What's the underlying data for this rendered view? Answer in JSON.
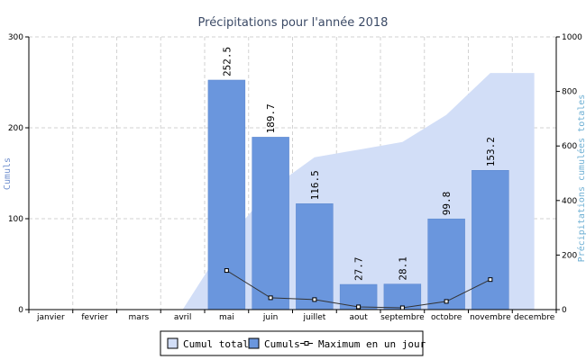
{
  "chart_data": {
    "type": "bar",
    "title": "Précipitations pour l'année 2018",
    "ylabel": "Cumuls",
    "y2label": "Précipitations cumulées totales",
    "categories": [
      "janvier",
      "fevrier",
      "mars",
      "avril",
      "mai",
      "juin",
      "juillet",
      "aout",
      "septembre",
      "octobre",
      "novembre",
      "decembre"
    ],
    "ylim": [
      0,
      300
    ],
    "y2lim": [
      0,
      1000
    ],
    "yticks": [
      "0",
      "100",
      "200",
      "300"
    ],
    "y2ticks": [
      "0",
      "200",
      "400",
      "600",
      "800",
      "1000"
    ],
    "grid": true,
    "legend_position": "bottom",
    "series": [
      {
        "name": "Cumuls",
        "type": "bar",
        "axis": "left",
        "color": "#6a96dd",
        "values": [
          null,
          null,
          null,
          null,
          252.5,
          189.7,
          116.5,
          27.7,
          28.1,
          99.8,
          153.2,
          null
        ],
        "labels": [
          "",
          "",
          "",
          "",
          "252.5",
          "189.7",
          "116.5",
          "27.7",
          "28.1",
          "99.8",
          "153.2",
          ""
        ]
      },
      {
        "name": "Maximum en un jour",
        "type": "line",
        "axis": "left",
        "color": "#333333",
        "values": [
          null,
          null,
          null,
          null,
          43,
          13,
          11,
          3,
          2,
          9,
          33,
          null
        ]
      },
      {
        "name": "Cumul total",
        "type": "area",
        "axis": "right",
        "color": "#d2def7",
        "values": [
          null,
          null,
          null,
          0,
          252.5,
          442.2,
          558.7,
          586.4,
          614.5,
          714.3,
          867.5,
          867.5
        ]
      }
    ],
    "legend": [
      "Cumul total",
      "Cumuls",
      "Maximum en un jour"
    ]
  }
}
